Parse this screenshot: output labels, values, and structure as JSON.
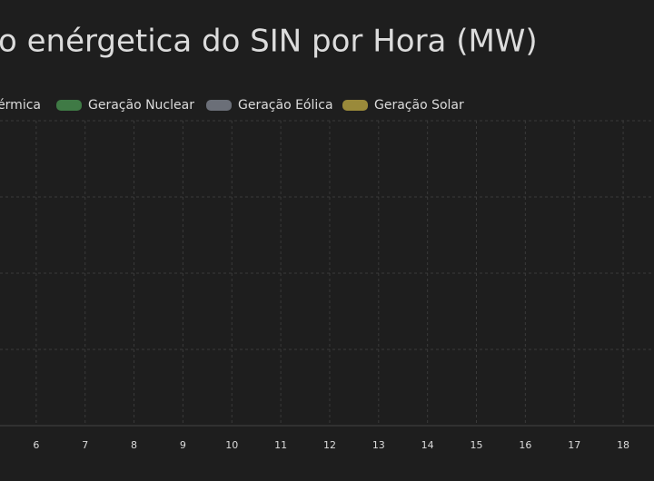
{
  "chart_data": {
    "type": "line",
    "title": "o enérgetica do SIN por Hora (MW)",
    "series": [
      {
        "name": "érmica"
      },
      {
        "name": "Geração Nuclear",
        "color": "#3f7a45"
      },
      {
        "name": "Geração Eólica",
        "color": "#6b6f78"
      },
      {
        "name": "Geração Solar",
        "color": "#9a8a3a"
      }
    ],
    "xlim": [
      5.26,
      18.63
    ],
    "xticks": [
      6,
      7,
      8,
      9,
      10,
      11,
      12,
      13,
      14,
      15,
      16,
      17,
      18
    ],
    "grid": true
  }
}
